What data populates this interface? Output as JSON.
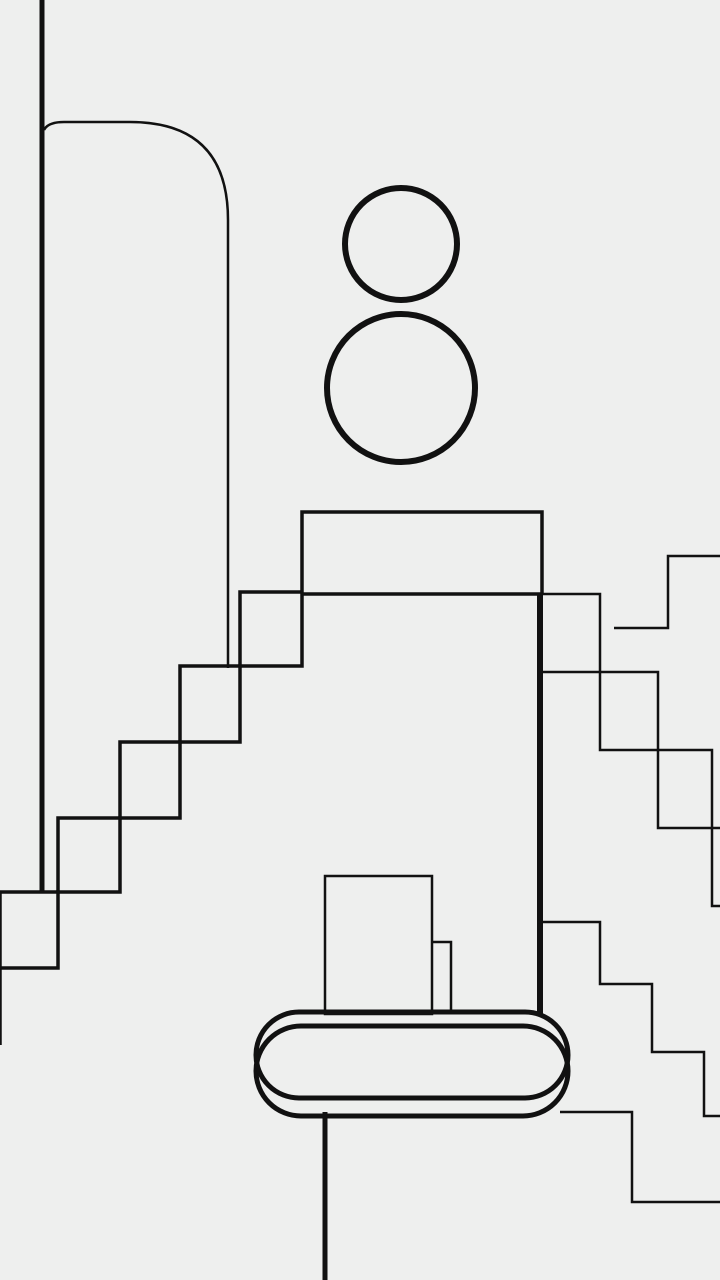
{
  "scene": {
    "background": "#eeefee",
    "ink": "#111111",
    "platform_fill": "#ffffff",
    "player": "two-circle-figure",
    "elements": [
      "tall-wall",
      "rounded-arch",
      "left-staircase",
      "top-box",
      "central-tower",
      "right-staircase-upper",
      "right-staircase-lower",
      "back-block",
      "rounded-platform",
      "platform-pole"
    ]
  }
}
